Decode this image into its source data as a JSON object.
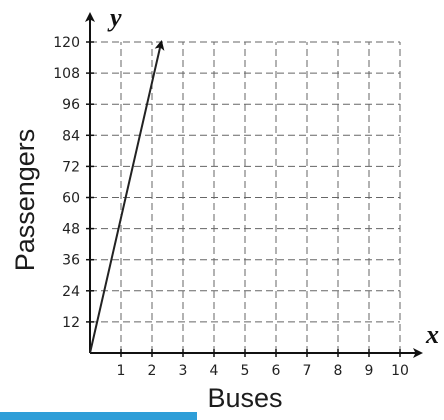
{
  "chart_data": {
    "type": "line",
    "title": "",
    "xlabel": "Buses",
    "ylabel": "Passengers",
    "x_axis_var": "x",
    "y_axis_var": "y",
    "xlim": [
      0,
      10
    ],
    "ylim": [
      0,
      120
    ],
    "x_ticks": [
      1,
      2,
      3,
      4,
      5,
      6,
      7,
      8,
      9,
      10
    ],
    "y_ticks": [
      12,
      24,
      36,
      48,
      60,
      72,
      84,
      96,
      108,
      120
    ],
    "grid": true,
    "grid_style": "dashed",
    "series": [
      {
        "x": [
          0,
          2.3
        ],
        "y": [
          0,
          120
        ],
        "arrow_end": true,
        "color": "#222222"
      }
    ]
  },
  "colors": {
    "accent_strip": "#2e9ed8",
    "grid": "#666666",
    "axis": "#111111"
  }
}
